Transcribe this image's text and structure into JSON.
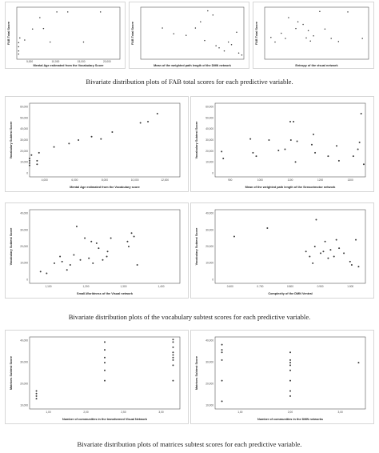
{
  "captions": {
    "fab": "Bivariate distribution plots of FAB total scores for each predictive variable.",
    "vocab": "Bivariate distribution plots of the vocabulary subtest scores for each predictive variable.",
    "matrices": "Bivariate distribution plots of matrices subtest scores for each predictive variable."
  },
  "chart_data": [
    {
      "type": "scatter",
      "name_key": "fab-age",
      "xlabel": "Mental Age estimated from the Vocabulary Score",
      "ylabel": "FAB Total Score",
      "xticks": [
        "5,000",
        "10,000",
        "15,000",
        "20,000"
      ],
      "yticks": [],
      "xlim": [
        4,
        21
      ],
      "ylim": [
        0,
        10
      ],
      "points": [
        [
          4.3,
          1.0
        ],
        [
          4.3,
          1.6
        ],
        [
          4.3,
          2.4
        ],
        [
          4.3,
          3.2
        ],
        [
          4.5,
          4.1
        ],
        [
          5.3,
          3.7
        ],
        [
          6.6,
          5.8
        ],
        [
          7.8,
          8.0
        ],
        [
          8.4,
          5.9
        ],
        [
          9.5,
          3.3
        ],
        [
          10.6,
          9.1
        ],
        [
          12.4,
          9.1
        ],
        [
          15.0,
          3.3
        ],
        [
          17.8,
          9.1
        ]
      ]
    },
    {
      "type": "scatter",
      "name_key": "fab-path",
      "xlabel": "Mean of the weighted path length of the DMN network",
      "ylabel": "FAB Total Score",
      "xticks": [
        "",
        "",
        "",
        "",
        ""
      ],
      "yticks": [],
      "xlim": [
        0,
        10
      ],
      "ylim": [
        0,
        10
      ],
      "points": [
        [
          2.1,
          6.0
        ],
        [
          3.2,
          4.9
        ],
        [
          4.4,
          4.6
        ],
        [
          5.3,
          6.0
        ],
        [
          5.8,
          7.2
        ],
        [
          6.2,
          3.6
        ],
        [
          6.5,
          9.3
        ],
        [
          7.0,
          8.5
        ],
        [
          7.3,
          2.6
        ],
        [
          7.6,
          2.2
        ],
        [
          8.1,
          1.6
        ],
        [
          8.5,
          3.3
        ],
        [
          8.8,
          2.8
        ],
        [
          9.3,
          5.2
        ],
        [
          9.5,
          1.2
        ],
        [
          9.8,
          0.8
        ]
      ]
    },
    {
      "type": "scatter",
      "name_key": "fab-entropy",
      "xlabel": "Entropy of the visual network",
      "ylabel": "FAB Total Score",
      "xticks": [
        "",
        "",
        "",
        ""
      ],
      "yticks": [],
      "xlim": [
        0,
        10
      ],
      "ylim": [
        0,
        10
      ],
      "points": [
        [
          0.6,
          4.2
        ],
        [
          1.0,
          3.3
        ],
        [
          1.6,
          5.0
        ],
        [
          2.0,
          4.0
        ],
        [
          2.3,
          8.0
        ],
        [
          3.0,
          5.9
        ],
        [
          3.2,
          7.2
        ],
        [
          3.7,
          6.7
        ],
        [
          4.0,
          4.1
        ],
        [
          4.2,
          5.5
        ],
        [
          4.4,
          3.5
        ],
        [
          4.7,
          4.5
        ],
        [
          5.3,
          9.2
        ],
        [
          5.8,
          5.8
        ],
        [
          6.4,
          4.0
        ],
        [
          7.1,
          3.4
        ],
        [
          8.0,
          9.1
        ],
        [
          9.4,
          4.0
        ]
      ]
    },
    {
      "type": "scatter",
      "name_key": "vocab-age",
      "xlabel": "Mental Age estimated from the Vocabulary score",
      "ylabel": "Vocabulary Subtest Score",
      "xticks": [
        "4,000",
        "6,000",
        "8,000",
        "10,000",
        "12,000"
      ],
      "yticks": [
        "0",
        "10,000",
        "20,000",
        "30,000",
        "40,000",
        "50,000",
        "60,000"
      ],
      "xlim": [
        4,
        12
      ],
      "ylim": [
        -2,
        62
      ],
      "points": [
        [
          4.0,
          8
        ],
        [
          4.0,
          10
        ],
        [
          4.0,
          12
        ],
        [
          4.0,
          14
        ],
        [
          4.1,
          17
        ],
        [
          4.4,
          9
        ],
        [
          4.4,
          12
        ],
        [
          4.5,
          19
        ],
        [
          5.3,
          24
        ],
        [
          6.1,
          27
        ],
        [
          6.6,
          30
        ],
        [
          7.3,
          33
        ],
        [
          7.8,
          31
        ],
        [
          8.4,
          37
        ],
        [
          9.9,
          45
        ],
        [
          10.3,
          46
        ],
        [
          10.8,
          53
        ]
      ]
    },
    {
      "type": "scatter",
      "name_key": "vocab-path",
      "xlabel": "Mean of the weighted path length of the Sensorimotor network",
      "ylabel": "Vocabulary Subtest Score",
      "xticks": [
        "900",
        "1000",
        "1100",
        "1200",
        "1300"
      ],
      "yticks": [
        "0",
        "10,000",
        "20,000",
        "30,000",
        "40,000",
        "50,000",
        "60,000"
      ],
      "xlim": [
        880,
        1340
      ],
      "ylim": [
        -2,
        62
      ],
      "points": [
        [
          900,
          20
        ],
        [
          905,
          14
        ],
        [
          988,
          31
        ],
        [
          996,
          19
        ],
        [
          1006,
          16
        ],
        [
          1045,
          30
        ],
        [
          1074,
          21
        ],
        [
          1094,
          22
        ],
        [
          1110,
          46
        ],
        [
          1112,
          30
        ],
        [
          1120,
          46
        ],
        [
          1126,
          11
        ],
        [
          1131,
          29
        ],
        [
          1176,
          26
        ],
        [
          1181,
          35
        ],
        [
          1186,
          19
        ],
        [
          1226,
          16
        ],
        [
          1252,
          25
        ],
        [
          1259,
          12
        ],
        [
          1303,
          16
        ],
        [
          1317,
          22
        ],
        [
          1322,
          28
        ],
        [
          1327,
          53
        ],
        [
          1335,
          9
        ]
      ]
    },
    {
      "type": "scatter",
      "name_key": "vocab-smallworld",
      "xlabel": "Small-Worldness of the Visual network",
      "ylabel": "Vocabulary Subtest Score",
      "xticks": [
        "1,100",
        "1,200",
        "1,300",
        "1,400"
      ],
      "yticks": [
        "0",
        "10,000",
        "20,000",
        "30,000",
        "40,000"
      ],
      "xlim": [
        1.08,
        1.45
      ],
      "ylim": [
        -2,
        42
      ],
      "points": [
        [
          1.107,
          5
        ],
        [
          1.122,
          4
        ],
        [
          1.141,
          10
        ],
        [
          1.155,
          14
        ],
        [
          1.16,
          11
        ],
        [
          1.172,
          6
        ],
        [
          1.18,
          9
        ],
        [
          1.189,
          15
        ],
        [
          1.196,
          32
        ],
        [
          1.205,
          12
        ],
        [
          1.216,
          25
        ],
        [
          1.226,
          13
        ],
        [
          1.232,
          23
        ],
        [
          1.236,
          10
        ],
        [
          1.245,
          22
        ],
        [
          1.25,
          19
        ],
        [
          1.26,
          12
        ],
        [
          1.27,
          14
        ],
        [
          1.272,
          17
        ],
        [
          1.28,
          25
        ],
        [
          1.321,
          23
        ],
        [
          1.324,
          20
        ],
        [
          1.331,
          28
        ],
        [
          1.337,
          26
        ],
        [
          1.345,
          9
        ]
      ]
    },
    {
      "type": "scatter",
      "name_key": "vocab-complexity",
      "xlabel": "Complexity of the DMN Ventral",
      "ylabel": "Vocabulary Subtest Score",
      "xticks": [
        "0.600",
        "0.700",
        "0.800",
        "0.900",
        "1.000"
      ],
      "yticks": [
        "0",
        "10,000",
        "20,000",
        "30,000",
        "40,000"
      ],
      "xlim": [
        0.58,
        1.02
      ],
      "ylim": [
        -2,
        42
      ],
      "points": [
        [
          0.636,
          26
        ],
        [
          0.733,
          31
        ],
        [
          0.846,
          17
        ],
        [
          0.857,
          14
        ],
        [
          0.866,
          10
        ],
        [
          0.872,
          20
        ],
        [
          0.876,
          36
        ],
        [
          0.889,
          16
        ],
        [
          0.897,
          17
        ],
        [
          0.902,
          23
        ],
        [
          0.911,
          13
        ],
        [
          0.918,
          18
        ],
        [
          0.928,
          14
        ],
        [
          0.935,
          24
        ],
        [
          0.943,
          19
        ],
        [
          0.957,
          16
        ],
        [
          0.975,
          11
        ],
        [
          0.98,
          9
        ],
        [
          0.992,
          24
        ],
        [
          1.0,
          8
        ]
      ]
    },
    {
      "type": "scatter",
      "name_key": "matrices-visual",
      "xlabel": "Number of communities in the transformed Visual Network",
      "ylabel": "Matrices Subtest Score",
      "xticks": [
        "1,00",
        "2,00",
        "2,50",
        "3,00"
      ],
      "yticks": [
        "10,000",
        "20,000",
        "30,000",
        "40,000"
      ],
      "xlim": [
        0.9,
        3.1
      ],
      "ylim": [
        14,
        42
      ],
      "points": [
        [
          1.0,
          18
        ],
        [
          1.0,
          19
        ],
        [
          1.0,
          20
        ],
        [
          1.0,
          21
        ],
        [
          2.0,
          25
        ],
        [
          2.0,
          29
        ],
        [
          2.0,
          32
        ],
        [
          2.0,
          34
        ],
        [
          2.0,
          37
        ],
        [
          2.0,
          40
        ],
        [
          3.0,
          25
        ],
        [
          3.0,
          31
        ],
        [
          3.0,
          33
        ],
        [
          3.0,
          34
        ],
        [
          3.0,
          35
        ],
        [
          3.0,
          36
        ],
        [
          3.0,
          38
        ],
        [
          3.0,
          40
        ],
        [
          3.0,
          41
        ]
      ]
    },
    {
      "type": "scatter",
      "name_key": "matrices-dmn",
      "xlabel": "Number of communities in the DMN networks",
      "ylabel": "Matrices Subtest Score",
      "xticks": [
        "1,00",
        "2,00",
        "3,00"
      ],
      "yticks": [
        "10,000",
        "20,000",
        "30,000",
        "40,000"
      ],
      "xlim": [
        0.9,
        3.1
      ],
      "ylim": [
        14,
        42
      ],
      "points": [
        [
          1.0,
          17
        ],
        [
          1.0,
          25
        ],
        [
          1.0,
          33
        ],
        [
          1.0,
          36
        ],
        [
          1.0,
          37
        ],
        [
          1.0,
          39
        ],
        [
          2.0,
          19
        ],
        [
          2.0,
          21
        ],
        [
          2.0,
          25
        ],
        [
          2.0,
          29
        ],
        [
          2.0,
          31
        ],
        [
          2.0,
          32
        ],
        [
          2.0,
          33
        ],
        [
          2.0,
          36
        ],
        [
          3.0,
          32
        ]
      ]
    }
  ]
}
